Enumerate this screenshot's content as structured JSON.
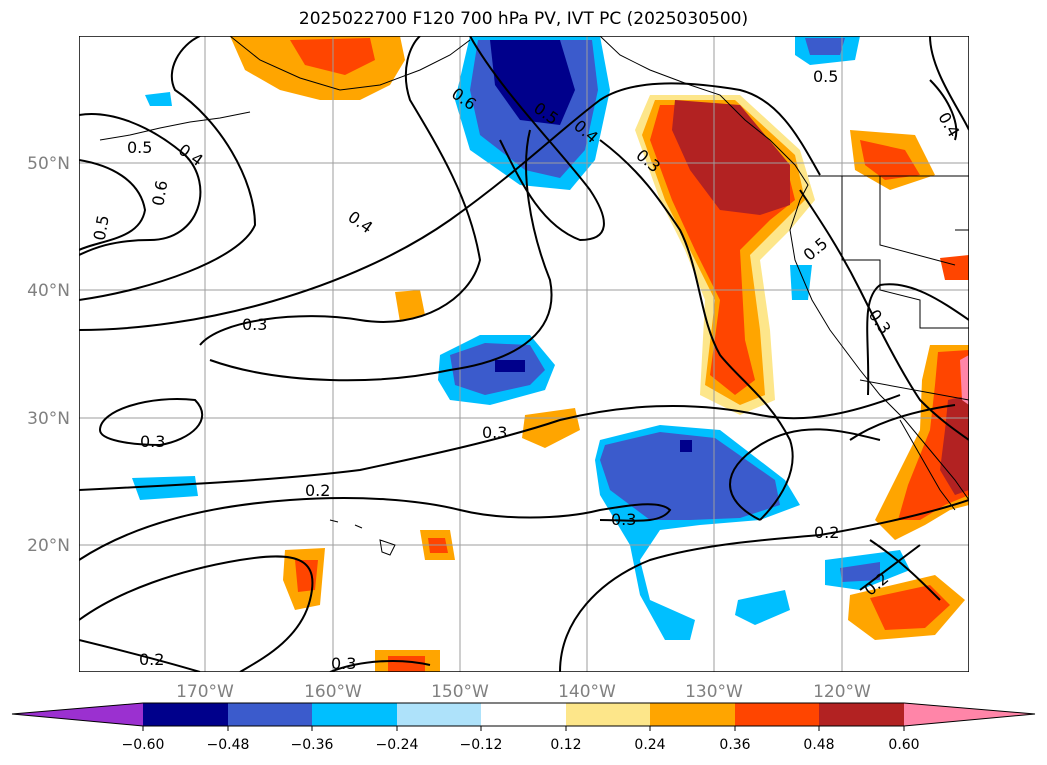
{
  "title": "2025022700 F120 700 hPa PV, IVT PC (2025030500)",
  "map": {
    "lat_labels": [
      "50°N",
      "40°N",
      "30°N",
      "20°N"
    ],
    "lon_labels": [
      "170°W",
      "160°W",
      "150°W",
      "140°W",
      "130°W",
      "120°W"
    ],
    "contour_labels": [
      "0.5",
      "0.4",
      "0.6",
      "0.5",
      "0.6",
      "0.5",
      "0.4",
      "0.3",
      "0.4",
      "0.5",
      "0.4",
      "0.5",
      "0.3",
      "0.3",
      "0.3",
      "0.3",
      "0.2",
      "0.3",
      "0.2",
      "0.2",
      "0.3",
      "0.2"
    ]
  },
  "colorbar": {
    "ticks": [
      "−0.60",
      "−0.48",
      "−0.36",
      "−0.24",
      "−0.12",
      "0.12",
      "0.24",
      "0.36",
      "0.48",
      "0.60"
    ],
    "colors": {
      "under": "#9b30d0",
      "n060": "#00008b",
      "n048": "#3b5bcc",
      "n036": "#00bfff",
      "n024": "#aee2fa",
      "zero": "#ffffff",
      "p012": "#fde68a",
      "p024": "#ffa500",
      "p036": "#ff4500",
      "p048": "#b22222",
      "over": "#ff85a8"
    }
  }
}
